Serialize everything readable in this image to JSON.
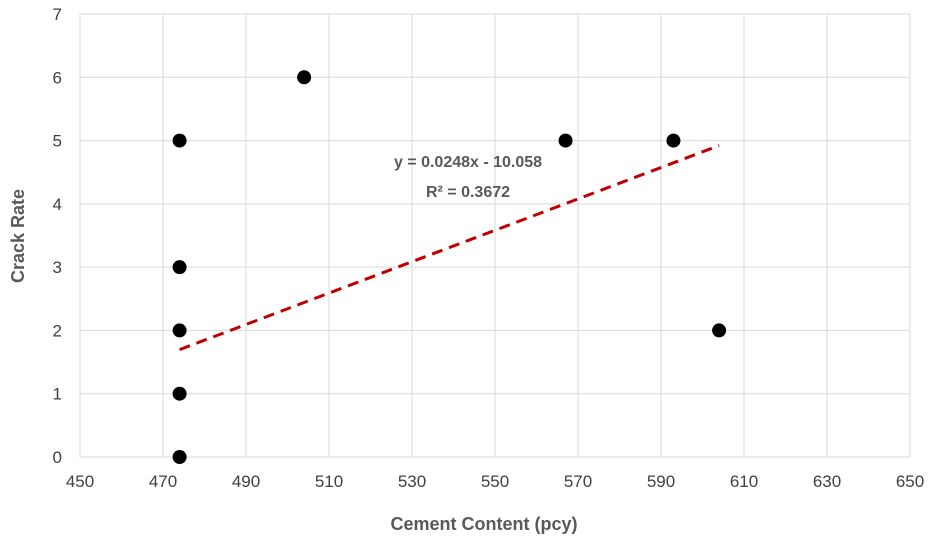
{
  "chart_data": {
    "type": "scatter",
    "xlabel": "Cement Content (pcy)",
    "ylabel": "Crack Rate",
    "xlim": [
      450,
      650
    ],
    "ylim": [
      0,
      7
    ],
    "x_ticks": [
      "450",
      "470",
      "490",
      "510",
      "530",
      "550",
      "570",
      "590",
      "610",
      "630",
      "650"
    ],
    "y_ticks": [
      "0",
      "1",
      "2",
      "3",
      "4",
      "5",
      "6",
      "7"
    ],
    "grid": true,
    "points": [
      {
        "x": 474,
        "y": 0
      },
      {
        "x": 474,
        "y": 1
      },
      {
        "x": 474,
        "y": 2
      },
      {
        "x": 474,
        "y": 3
      },
      {
        "x": 474,
        "y": 5
      },
      {
        "x": 504,
        "y": 6
      },
      {
        "x": 567,
        "y": 5
      },
      {
        "x": 593,
        "y": 5
      },
      {
        "x": 604,
        "y": 2
      }
    ],
    "trendline": {
      "type": "linear",
      "slope": 0.0248,
      "intercept": -10.058,
      "x_range": [
        474,
        604
      ],
      "equation": "y = 0.0248x - 10.058",
      "r_squared": "R² = 0.3672"
    },
    "colors": {
      "points": "#000000",
      "trendline": "#C00000",
      "grid": "#D9D9D9",
      "text": "#595959"
    }
  }
}
